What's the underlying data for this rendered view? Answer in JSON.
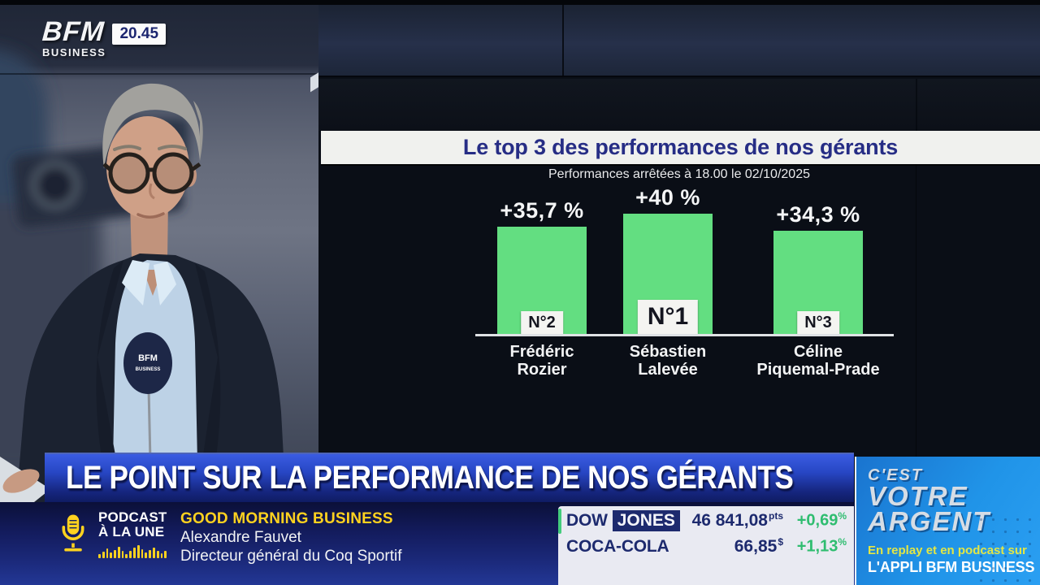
{
  "channel": {
    "logo_main": "BFM",
    "logo_sub": "BUSINESS",
    "time": "20.45"
  },
  "chart_data": {
    "type": "bar",
    "title": "Le top 3 des performances de nos gérants",
    "subtitle": "Performances arrêtées à 18.00 le 02/10/2025",
    "categories": [
      "Frédéric Rozier",
      "Sébastien Lalevée",
      "Céline Piquemal-Prade"
    ],
    "values": [
      35.7,
      40,
      34.3
    ],
    "value_labels": [
      "+35,7 %",
      "+40 %",
      "+34,3 %"
    ],
    "ranks": [
      "N°2",
      "N°1",
      "N°3"
    ],
    "name_lines": [
      [
        "Frédéric",
        "Rozier"
      ],
      [
        "Sébastien",
        "Lalevée"
      ],
      [
        "Céline",
        "Piquemal-Prade"
      ]
    ],
    "xlabel": "",
    "ylabel": "",
    "ylim": [
      0,
      45
    ],
    "grid": false,
    "legend": "none",
    "bar_color": "#63de81"
  },
  "banner": {
    "headline": "LE POINT SUR LA PERFORMANCE DE NOS GÉRANTS"
  },
  "podcast": {
    "kicker_line1": "PODCAST",
    "kicker_line2": "À LA UNE",
    "show": "GOOD MORNING BUSINESS",
    "guest": "Alexandre Fauvet",
    "guest_role": "Directeur général du Coq Sportif"
  },
  "ticker": {
    "rows": [
      {
        "name": "DOW",
        "name_boxed": "JONES",
        "value": "46 841,08",
        "unit": "pts",
        "change": "+0,69",
        "change_unit": "%"
      },
      {
        "name": "COCA-COLA",
        "value": "66,85",
        "unit": "$",
        "change": "+1,13",
        "change_unit": "%"
      }
    ],
    "up_color": "#2fbd70"
  },
  "promo": {
    "line1": "C'EST",
    "line2": "VOTRE",
    "line3": "ARGENT",
    "replay": "En replay et en podcast sur",
    "app": "L'APPLI BFM BUSINESS"
  },
  "mic_flag": {
    "line1": "BFM",
    "line2": "BUSINESS"
  },
  "colors": {
    "bar_green": "#63de81",
    "banner_blue": "#2746c4",
    "accent_yellow": "#ffd21f",
    "promo_blue": "#2094e8",
    "up_green": "#2fbd70",
    "title_navy": "#262d85"
  }
}
